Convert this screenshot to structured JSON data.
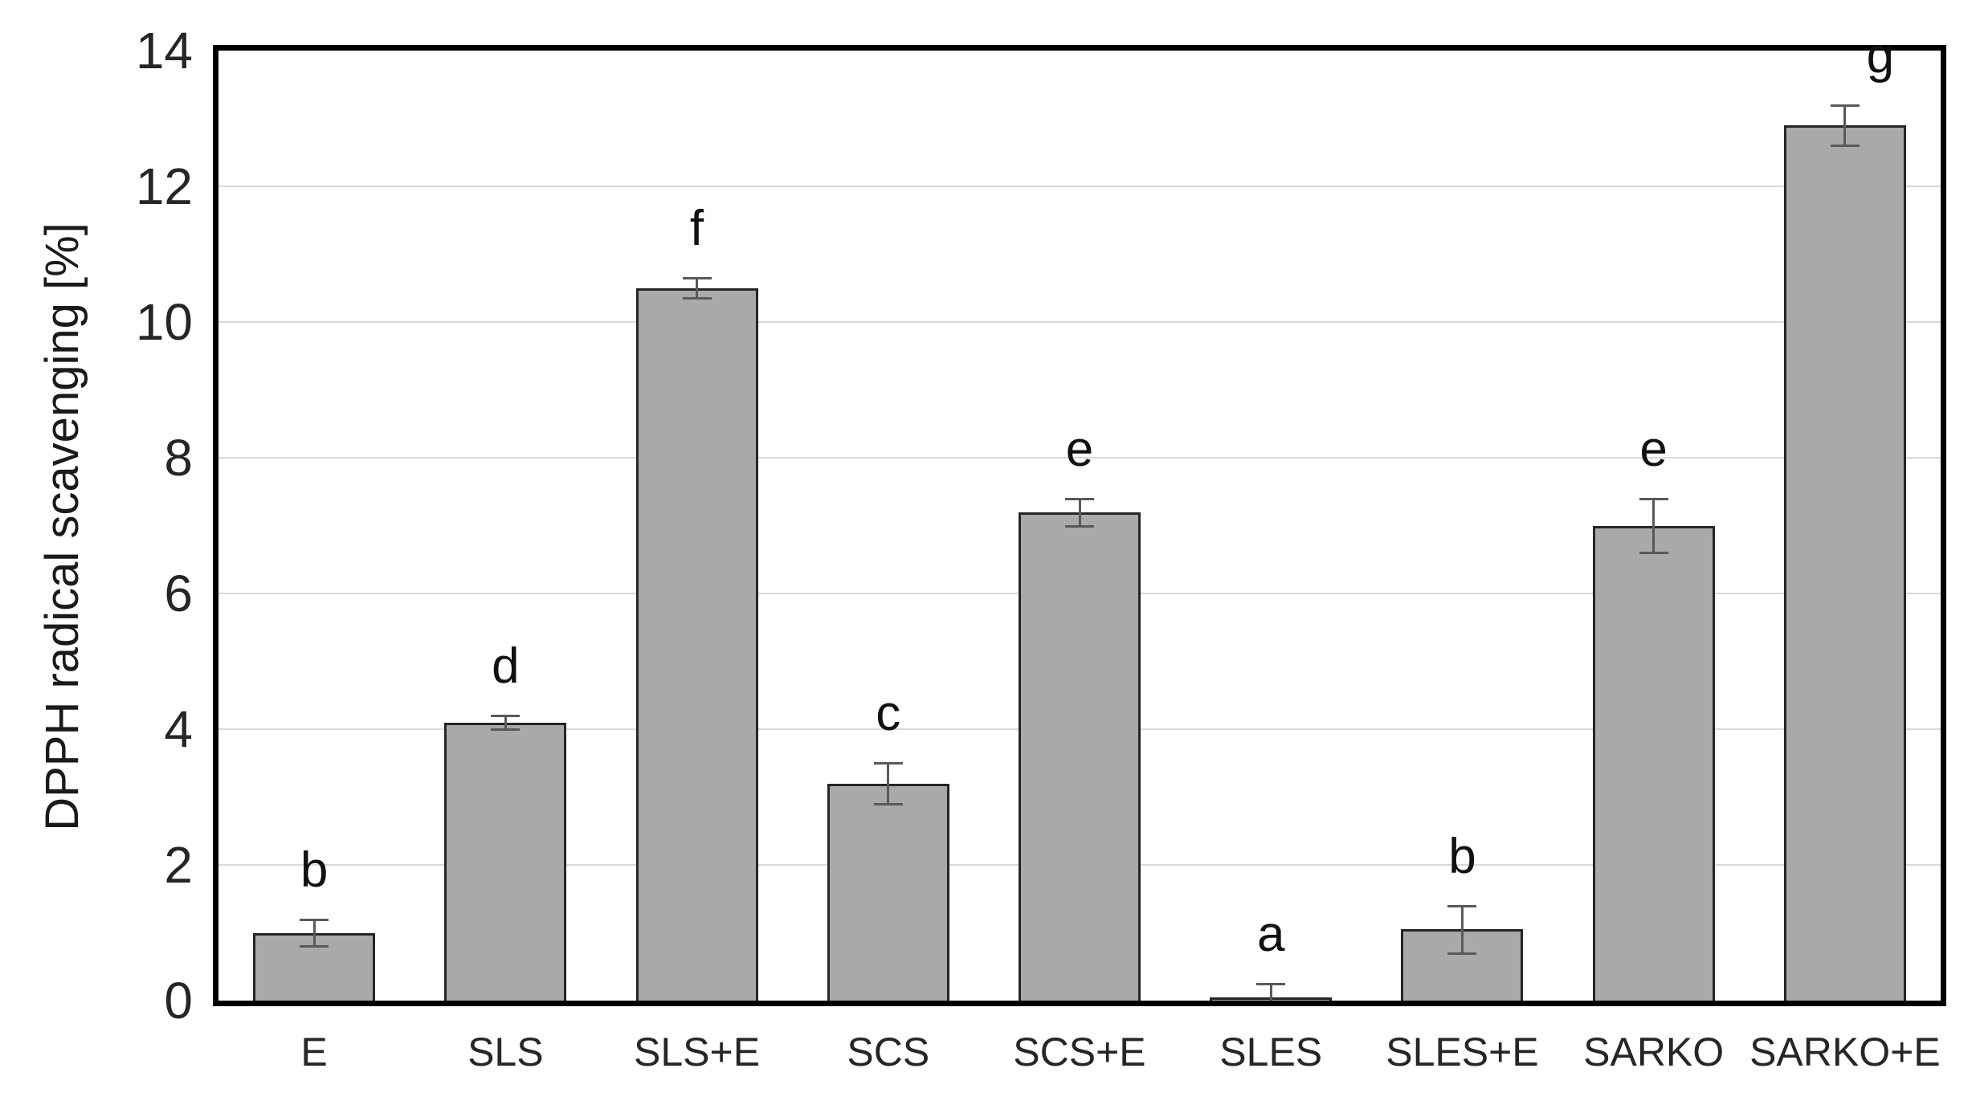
{
  "chart_data": {
    "type": "bar",
    "categories": [
      "E",
      "SLS",
      "SLS+E",
      "SCS",
      "SCS+E",
      "SLES",
      "SLES+E",
      "SARKO",
      "SARKO+E"
    ],
    "values": [
      1.0,
      4.1,
      10.5,
      3.2,
      7.2,
      0.05,
      1.05,
      7.0,
      12.9
    ],
    "errors": [
      0.2,
      0.1,
      0.15,
      0.3,
      0.2,
      0.2,
      0.35,
      0.4,
      0.3
    ],
    "letters": [
      "b",
      "d",
      "f",
      "c",
      "e",
      "a",
      "b",
      "e",
      "g"
    ],
    "letter_dx": [
      0,
      0,
      0,
      0,
      0,
      0,
      0,
      0,
      44
    ],
    "title": "",
    "xlabel": "",
    "ylabel": "DPPH radical scavenging [%]",
    "yticks": [
      0,
      2,
      4,
      6,
      8,
      10,
      12,
      14
    ],
    "ylim": [
      0,
      14
    ],
    "grid": true,
    "legend": "none",
    "bar_fill": "#a9a9a9",
    "bar_border": "#262626",
    "error_color": "#595959",
    "gridline_color": "#d9d9d9",
    "axis_color": "#000000",
    "background": "#ffffff"
  }
}
